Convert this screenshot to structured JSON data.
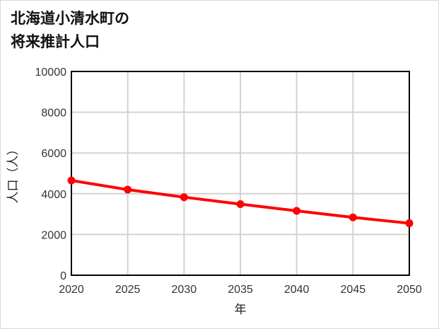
{
  "title": {
    "line1": "北海道小清水町の",
    "line2": "将来推計人口"
  },
  "colors": {
    "series": "#ff0000",
    "grid": "#d3d3d3",
    "axis": "#000000",
    "text": "#333333",
    "border": "#d9d9d9"
  },
  "chart_data": {
    "type": "line",
    "title": "北海道小清水町の将来推計人口",
    "xlabel": "年",
    "ylabel": "人口（人）",
    "x": [
      2020,
      2025,
      2030,
      2035,
      2040,
      2045,
      2050
    ],
    "categories": [
      "2020",
      "2025",
      "2030",
      "2035",
      "2040",
      "2045",
      "2050"
    ],
    "series": [
      {
        "name": "人口",
        "values": [
          4650,
          4200,
          3830,
          3490,
          3160,
          2840,
          2550
        ]
      }
    ],
    "ylim": [
      0,
      10000
    ],
    "yticks": [
      0,
      2000,
      4000,
      6000,
      8000,
      10000
    ],
    "xlim": [
      2020,
      2050
    ],
    "grid": true,
    "legend": "none",
    "markers": true
  }
}
